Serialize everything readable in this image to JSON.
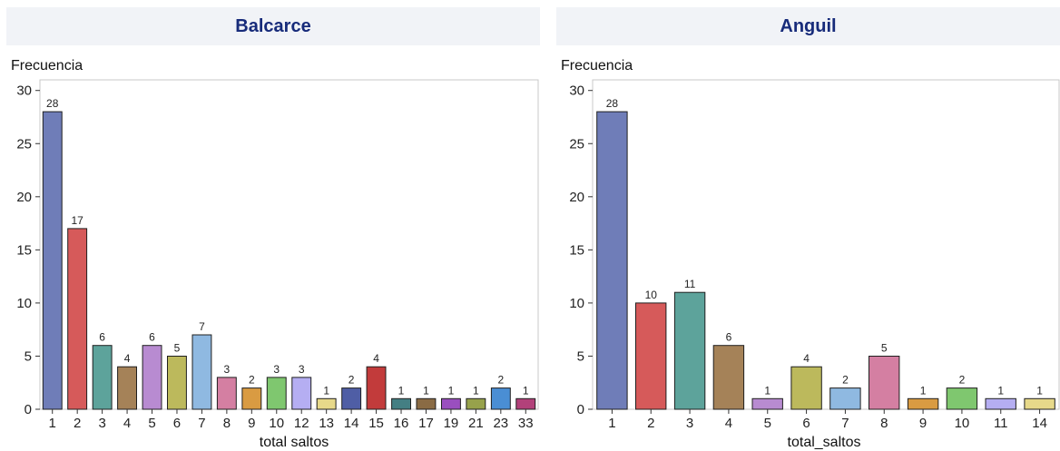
{
  "chart_data": [
    {
      "type": "bar",
      "title": "Balcarce",
      "ylabel": "Frecuencia",
      "xlabel": "total  saltos",
      "ylim": [
        0,
        31
      ],
      "yticks": [
        0,
        5,
        10,
        15,
        20,
        25,
        30
      ],
      "grid": false,
      "categories": [
        "1",
        "2",
        "3",
        "4",
        "5",
        "6",
        "7",
        "8",
        "9",
        "10",
        "12",
        "13",
        "14",
        "15",
        "16",
        "17",
        "19",
        "21",
        "23",
        "33"
      ],
      "values": [
        28,
        17,
        6,
        4,
        6,
        5,
        7,
        3,
        2,
        3,
        3,
        1,
        2,
        4,
        1,
        1,
        1,
        1,
        2,
        1
      ],
      "colors": [
        "#6f7db8",
        "#d65a5a",
        "#5da39b",
        "#a58258",
        "#b88bd1",
        "#bcb95c",
        "#8fb9e1",
        "#d47fa2",
        "#d99b42",
        "#7fc76f",
        "#b5aef2",
        "#e7d98a",
        "#4f5ea5",
        "#c23b3b",
        "#447f83",
        "#8a6b44",
        "#9a4fbf",
        "#97a24b",
        "#4a8ed4",
        "#b2417a"
      ]
    },
    {
      "type": "bar",
      "title": "Anguil",
      "ylabel": "Frecuencia",
      "xlabel": "total_saltos",
      "ylim": [
        0,
        31
      ],
      "yticks": [
        0,
        5,
        10,
        15,
        20,
        25,
        30
      ],
      "grid": false,
      "categories": [
        "1",
        "2",
        "3",
        "4",
        "5",
        "6",
        "7",
        "8",
        "9",
        "10",
        "11",
        "14"
      ],
      "values": [
        28,
        10,
        11,
        6,
        1,
        4,
        2,
        5,
        1,
        2,
        1,
        1
      ],
      "colors": [
        "#6f7db8",
        "#d65a5a",
        "#5da39b",
        "#a58258",
        "#b88bd1",
        "#bcb95c",
        "#8fb9e1",
        "#d47fa2",
        "#d99b42",
        "#7fc76f",
        "#b5aef2",
        "#e7d98a"
      ]
    }
  ]
}
